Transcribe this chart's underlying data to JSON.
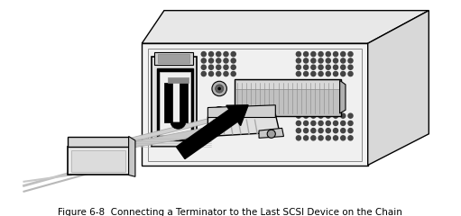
{
  "background_color": "#ffffff",
  "line_color": "#000000",
  "light_gray": "#d0d0d0",
  "mid_gray": "#a0a0a0",
  "dark_gray": "#606060",
  "box_fill": "#f0f0f0",
  "box_shadow": "#c8c8c8",
  "title": "Figure 6-8  Connecting a Terminator to the Last SCSI Device on the Chain",
  "figsize": [
    5.11,
    2.4
  ],
  "dpi": 100
}
